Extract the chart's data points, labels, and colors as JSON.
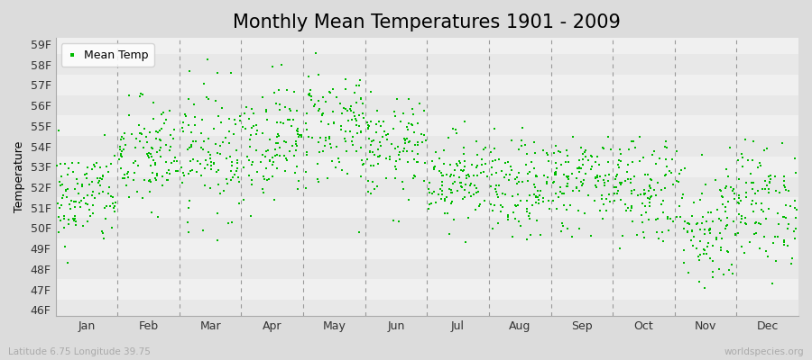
{
  "title": "Monthly Mean Temperatures 1901 - 2009",
  "ylabel": "Temperature",
  "xlabel_labels": [
    "Jan",
    "Feb",
    "Mar",
    "Apr",
    "May",
    "Jun",
    "Jul",
    "Aug",
    "Sep",
    "Oct",
    "Nov",
    "Dec"
  ],
  "ytick_labels": [
    "46F",
    "47F",
    "48F",
    "49F",
    "50F",
    "51F",
    "52F",
    "53F",
    "54F",
    "55F",
    "56F",
    "57F",
    "58F",
    "59F"
  ],
  "ytick_values": [
    46,
    47,
    48,
    49,
    50,
    51,
    52,
    53,
    54,
    55,
    56,
    57,
    58,
    59
  ],
  "ylim": [
    45.7,
    59.3
  ],
  "dot_color": "#00bb00",
  "bg_color": "#dcdcdc",
  "plot_bg_even": "#e8e8e8",
  "plot_bg_odd": "#f0f0f0",
  "dashed_line_color": "#999999",
  "legend_label": "Mean Temp",
  "footnote_left": "Latitude 6.75 Longitude 39.75",
  "footnote_right": "worldspecies.org",
  "title_fontsize": 15,
  "label_fontsize": 9,
  "tick_fontsize": 9,
  "dot_size": 3,
  "n_years": 109,
  "seed": 42,
  "monthly_means": [
    51.5,
    53.5,
    53.8,
    54.3,
    55.0,
    53.8,
    52.5,
    51.8,
    52.3,
    52.0,
    50.2,
    51.2
  ],
  "monthly_stds": [
    1.2,
    1.4,
    1.6,
    1.4,
    1.5,
    1.2,
    1.1,
    1.2,
    1.2,
    1.4,
    1.7,
    1.5
  ]
}
